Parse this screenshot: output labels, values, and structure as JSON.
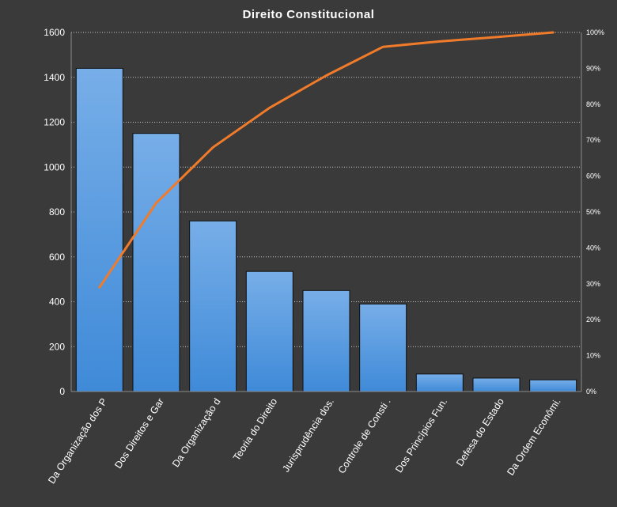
{
  "chart_data": {
    "type": "bar",
    "title": "Direito  Constitucional",
    "categories": [
      "Da Organização dos P",
      "Dos Direitos e Gar",
      "Da Organização d",
      "Teoria do Direito",
      "Jurisprudência dos.",
      "Controle de Consti .",
      "Dos Princípios Fun.",
      "Defesa do Estado",
      "Da Ordem Econômi."
    ],
    "values": [
      1440,
      1150,
      760,
      535,
      450,
      390,
      78,
      60,
      52
    ],
    "cumulative_percent": [
      29,
      52.5,
      68,
      79,
      88,
      96,
      97.5,
      98.7,
      100
    ],
    "ylim": [
      0,
      1600
    ],
    "yticks": [
      "0",
      "200",
      "400",
      "600",
      "800",
      "1000",
      "1200",
      "1400",
      "1600"
    ],
    "y2lim": [
      0,
      100
    ],
    "y2ticks": [
      "0%",
      "10%",
      "20%",
      "30%",
      "40%",
      "50%",
      "60%",
      "70%",
      "80%",
      "90%",
      "100%"
    ],
    "grid": true,
    "legend": "none",
    "colors": {
      "background": "#3a3a3a",
      "bar_top": "#77aee8",
      "bar_bottom": "#3f8ad8",
      "bar_edge": "#101010",
      "line": "#f07b2a",
      "grid": "#c8c8c8",
      "text": "#ffffff"
    }
  }
}
